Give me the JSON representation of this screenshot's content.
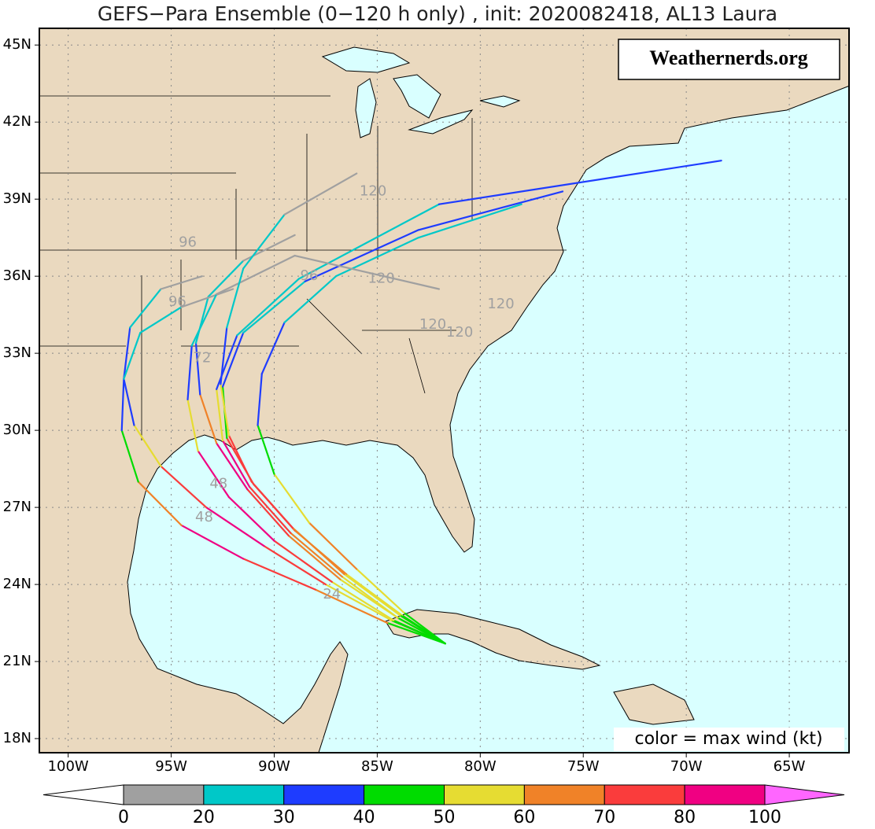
{
  "header": {
    "title": "GEFS−Para Ensemble (0−120 h only) , init: 2020082418, AL13 Laura"
  },
  "watermark": "Weathernerds.org",
  "legend_note": "color = max wind (kt)",
  "map": {
    "lon_range": [
      -101.4,
      -62.1
    ],
    "lat_range": [
      17.45,
      45.65
    ],
    "lat_ticks": [
      {
        "value": 18,
        "label": "18N"
      },
      {
        "value": 21,
        "label": "21N"
      },
      {
        "value": 24,
        "label": "24N"
      },
      {
        "value": 27,
        "label": "27N"
      },
      {
        "value": 30,
        "label": "30N"
      },
      {
        "value": 33,
        "label": "33N"
      },
      {
        "value": 36,
        "label": "36N"
      },
      {
        "value": 39,
        "label": "39N"
      },
      {
        "value": 42,
        "label": "42N"
      },
      {
        "value": 45,
        "label": "45N"
      }
    ],
    "lon_ticks": [
      {
        "value": -100,
        "label": "100W"
      },
      {
        "value": -95,
        "label": "95W"
      },
      {
        "value": -90,
        "label": "90W"
      },
      {
        "value": -85,
        "label": "85W"
      },
      {
        "value": -80,
        "label": "80W"
      },
      {
        "value": -75,
        "label": "75W"
      },
      {
        "value": -70,
        "label": "70W"
      },
      {
        "value": -65,
        "label": "65W"
      }
    ],
    "grid": true
  },
  "colorbar": {
    "bounds": [
      0,
      20,
      30,
      40,
      50,
      60,
      70,
      80,
      100
    ],
    "colors": [
      "#a0a0a0",
      "#00c8c8",
      "#1e3cff",
      "#00dc00",
      "#e6dc32",
      "#f08228",
      "#fa3c3c",
      "#f00082"
    ],
    "under_color": "#ffffff",
    "over_color": "#ff66ff"
  },
  "tracks": [
    {
      "lon": [
        -81.7,
        -84.0,
        -86.8,
        -89.3,
        -91.3,
        -92.8,
        -93.6,
        -93.8,
        -93.2,
        -91.5,
        -89.0
      ],
      "lat": [
        21.7,
        22.7,
        24.2,
        25.9,
        27.7,
        29.5,
        31.4,
        33.4,
        35.2,
        36.6,
        37.6
      ],
      "wind": [
        40,
        45,
        55,
        65,
        75,
        85,
        60,
        35,
        25,
        20,
        15
      ]
    },
    {
      "lon": [
        -81.7,
        -84.3,
        -87.5,
        -90.5,
        -93.3,
        -95.5,
        -96.8,
        -97.3,
        -97.0,
        -95.5,
        -93.5
      ],
      "lat": [
        21.7,
        22.6,
        24.0,
        25.5,
        27.0,
        28.6,
        30.2,
        32.0,
        34.0,
        35.5,
        36.0
      ],
      "wind": [
        40,
        45,
        55,
        70,
        85,
        75,
        50,
        35,
        30,
        20,
        15
      ]
    },
    {
      "lon": [
        -81.7,
        -84.5,
        -88.0,
        -91.5,
        -94.5,
        -96.6,
        -97.4,
        -97.3,
        -96.5,
        -94.5,
        -92.0
      ],
      "lat": [
        21.7,
        22.5,
        23.8,
        25.0,
        26.3,
        28.0,
        30.0,
        32.0,
        33.8,
        34.8,
        35.5
      ],
      "wind": [
        40,
        45,
        60,
        75,
        85,
        65,
        45,
        35,
        25,
        20,
        15
      ]
    },
    {
      "lon": [
        -81.7,
        -83.7,
        -86.0,
        -88.3,
        -90.0,
        -90.8,
        -90.6,
        -89.5,
        -87.0,
        -83.0,
        -78.0
      ],
      "lat": [
        21.7,
        22.9,
        24.6,
        26.4,
        28.3,
        30.2,
        32.2,
        34.2,
        36.0,
        37.5,
        38.8
      ],
      "wind": [
        40,
        45,
        55,
        60,
        55,
        45,
        35,
        30,
        25,
        25,
        20
      ]
    },
    {
      "lon": [
        -81.7,
        -83.8,
        -86.5,
        -89.0,
        -91.0,
        -92.3,
        -92.5,
        -91.5,
        -88.5,
        -83.0,
        -76.0
      ],
      "lat": [
        21.7,
        22.8,
        24.4,
        26.1,
        27.9,
        29.7,
        31.7,
        33.8,
        35.8,
        37.8,
        39.3
      ],
      "wind": [
        40,
        45,
        55,
        65,
        75,
        70,
        45,
        30,
        25,
        35,
        35
      ]
    },
    {
      "lon": [
        -81.7,
        -84.0,
        -86.7,
        -89.2,
        -91.2,
        -92.5,
        -92.8,
        -91.8,
        -88.8,
        -82.0,
        -68.3
      ],
      "lat": [
        21.7,
        22.7,
        24.3,
        26.0,
        27.8,
        29.6,
        31.6,
        33.7,
        35.9,
        38.8,
        40.5
      ],
      "wind": [
        40,
        45,
        55,
        65,
        75,
        80,
        50,
        35,
        25,
        25,
        35
      ]
    },
    {
      "lon": [
        -81.7,
        -84.2,
        -87.2,
        -90.0,
        -92.2,
        -93.7,
        -94.2,
        -94.0,
        -92.8,
        -89.0,
        -82.0
      ],
      "lat": [
        21.7,
        22.6,
        24.1,
        25.7,
        27.4,
        29.2,
        31.2,
        33.3,
        35.3,
        36.8,
        35.5
      ],
      "wind": [
        40,
        45,
        55,
        70,
        80,
        85,
        55,
        30,
        20,
        15,
        15
      ]
    },
    {
      "lon": [
        -81.7,
        -83.9,
        -86.6,
        -89.1,
        -91.1,
        -92.2,
        -92.6,
        -92.3,
        -91.5,
        -89.5,
        -86.0
      ],
      "lat": [
        21.7,
        22.8,
        24.4,
        26.2,
        28.0,
        29.8,
        31.8,
        34.0,
        36.3,
        38.4,
        40.0
      ],
      "wind": [
        40,
        45,
        55,
        65,
        75,
        75,
        50,
        30,
        25,
        20,
        15
      ]
    }
  ],
  "track_labels": [
    {
      "text": "24",
      "lon": -87.2,
      "lat": 23.6
    },
    {
      "text": "48",
      "lon": -92.7,
      "lat": 27.9
    },
    {
      "text": "48",
      "lon": -93.4,
      "lat": 26.6
    },
    {
      "text": "72",
      "lon": -93.5,
      "lat": 32.8
    },
    {
      "text": "96",
      "lon": -94.2,
      "lat": 37.3
    },
    {
      "text": "96",
      "lon": -94.7,
      "lat": 35.0
    },
    {
      "text": "96",
      "lon": -88.3,
      "lat": 36.0
    },
    {
      "text": "120",
      "lon": -85.2,
      "lat": 39.3
    },
    {
      "text": "120",
      "lon": -84.8,
      "lat": 35.9
    },
    {
      "text": "120",
      "lon": -82.3,
      "lat": 34.1
    },
    {
      "text": "120",
      "lon": -79.0,
      "lat": 34.9
    },
    {
      "text": "120",
      "lon": -81.0,
      "lat": 33.8
    }
  ]
}
